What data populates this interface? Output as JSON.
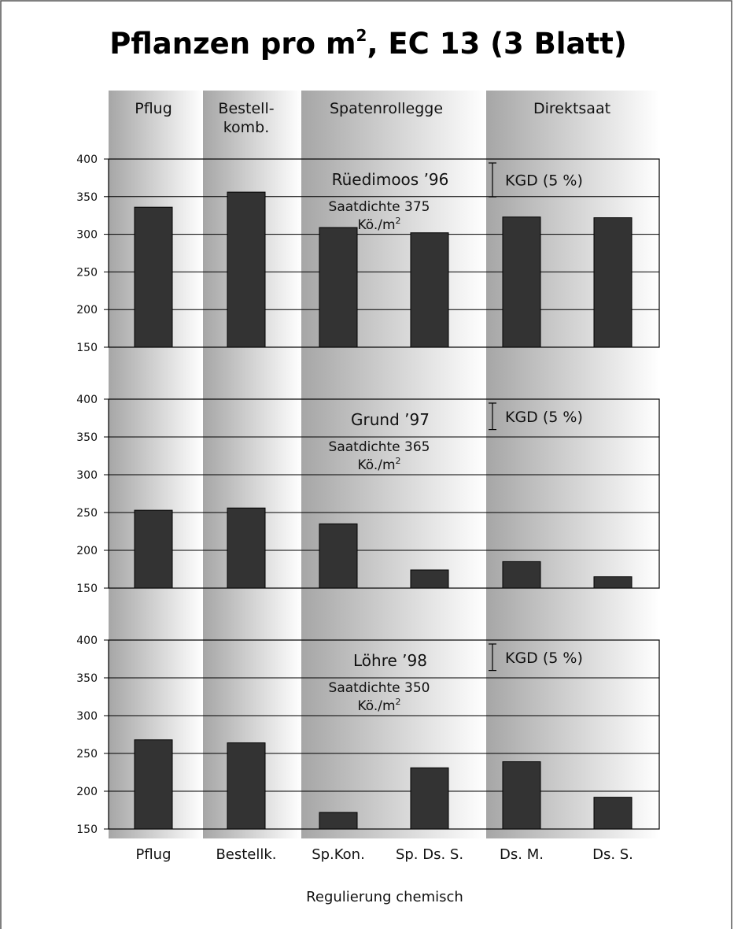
{
  "title": {
    "main": "Pflanzen pro m",
    "sup": "2",
    "rest": ", EC 13 (3 Blatt)"
  },
  "column_headers": [
    {
      "lines": [
        "Pflug"
      ]
    },
    {
      "lines": [
        "Bestell-",
        "komb."
      ]
    },
    {
      "lines": [
        "Spatenrollegge"
      ]
    },
    {
      "lines": [
        "Direktsaat"
      ]
    }
  ],
  "x_footer": "Regulierung chemisch",
  "kgd_label": "KGD (5 %)",
  "colors": {
    "bar": "#333333",
    "band_dark": "#a8a8a8",
    "band_light": "#ffffff"
  },
  "chart_data": [
    {
      "type": "bar",
      "title": "Rüedimoos  ’96",
      "annotation": "Saatdichte 375",
      "annotation_unit_base": "Kö./m",
      "annotation_unit_sup": "2",
      "categories": [
        "Pflug",
        "Bestellk.",
        "Sp.Kon.",
        "Sp. Ds. S.",
        "Ds. M.",
        "Ds. S."
      ],
      "values": [
        336,
        356,
        309,
        302,
        323,
        322
      ],
      "ylim": [
        150,
        400
      ],
      "yticks": [
        150,
        200,
        250,
        300,
        350,
        400
      ],
      "kgd": 45,
      "grid": true,
      "xlabel": "",
      "ylabel": ""
    },
    {
      "type": "bar",
      "title": "Grund ’97",
      "annotation": "Saatdichte 365",
      "annotation_unit_base": "Kö./m",
      "annotation_unit_sup": "2",
      "categories": [
        "Pflug",
        "Bestellk.",
        "Sp.Kon.",
        "Sp. Ds. S.",
        "Ds. M.",
        "Ds. S."
      ],
      "values": [
        253,
        256,
        235,
        174,
        185,
        165
      ],
      "ylim": [
        150,
        400
      ],
      "yticks": [
        150,
        200,
        250,
        300,
        350,
        400
      ],
      "kgd": 35,
      "grid": true,
      "xlabel": "",
      "ylabel": ""
    },
    {
      "type": "bar",
      "title": "Löhre ’98",
      "annotation": "Saatdichte 350",
      "annotation_unit_base": "Kö./m",
      "annotation_unit_sup": "2",
      "categories": [
        "Pflug",
        "Bestellk.",
        "Sp.Kon.",
        "Sp. Ds. S.",
        "Ds. M.",
        "Ds. S."
      ],
      "values": [
        268,
        264,
        172,
        231,
        239,
        192
      ],
      "ylim": [
        150,
        400
      ],
      "yticks": [
        150,
        200,
        250,
        300,
        350,
        400
      ],
      "kgd": 35,
      "grid": true,
      "xlabel": "",
      "ylabel": ""
    }
  ]
}
